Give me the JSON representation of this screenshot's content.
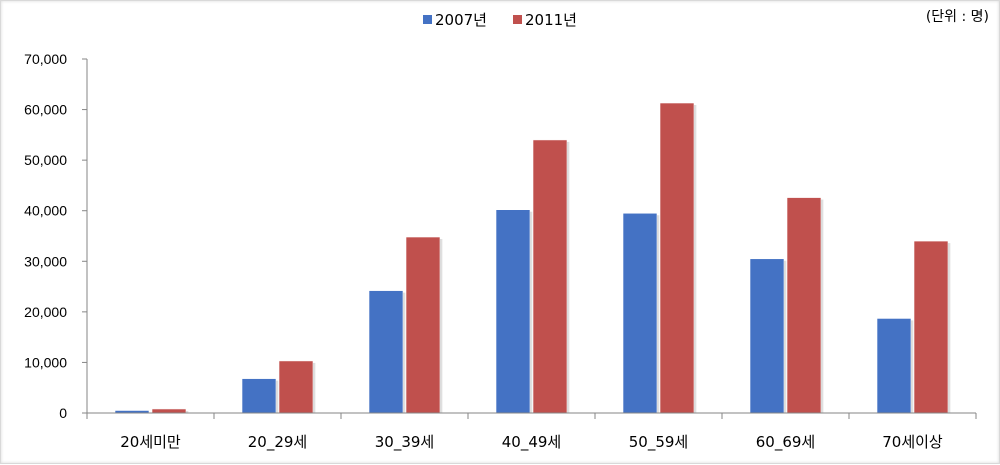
{
  "unit_label": "(단위 : 명)",
  "chart_data": {
    "type": "bar",
    "categories": [
      "20세미만",
      "20_29세",
      "30_39세",
      "40_49세",
      "50_59세",
      "60_69세",
      "70세이상"
    ],
    "series": [
      {
        "name": "2007년",
        "color": "#4472c4",
        "values": [
          500,
          6800,
          24200,
          40200,
          39500,
          30500,
          18700
        ]
      },
      {
        "name": "2011년",
        "color": "#c0504d",
        "values": [
          800,
          10300,
          34800,
          54000,
          61300,
          42600,
          34000
        ]
      }
    ],
    "ylim": [
      0,
      70000
    ],
    "yticks": [
      "0",
      "10,000",
      "20,000",
      "30,000",
      "40,000",
      "50,000",
      "60,000",
      "70,000"
    ],
    "legend_position": "top-center",
    "grid": false
  }
}
